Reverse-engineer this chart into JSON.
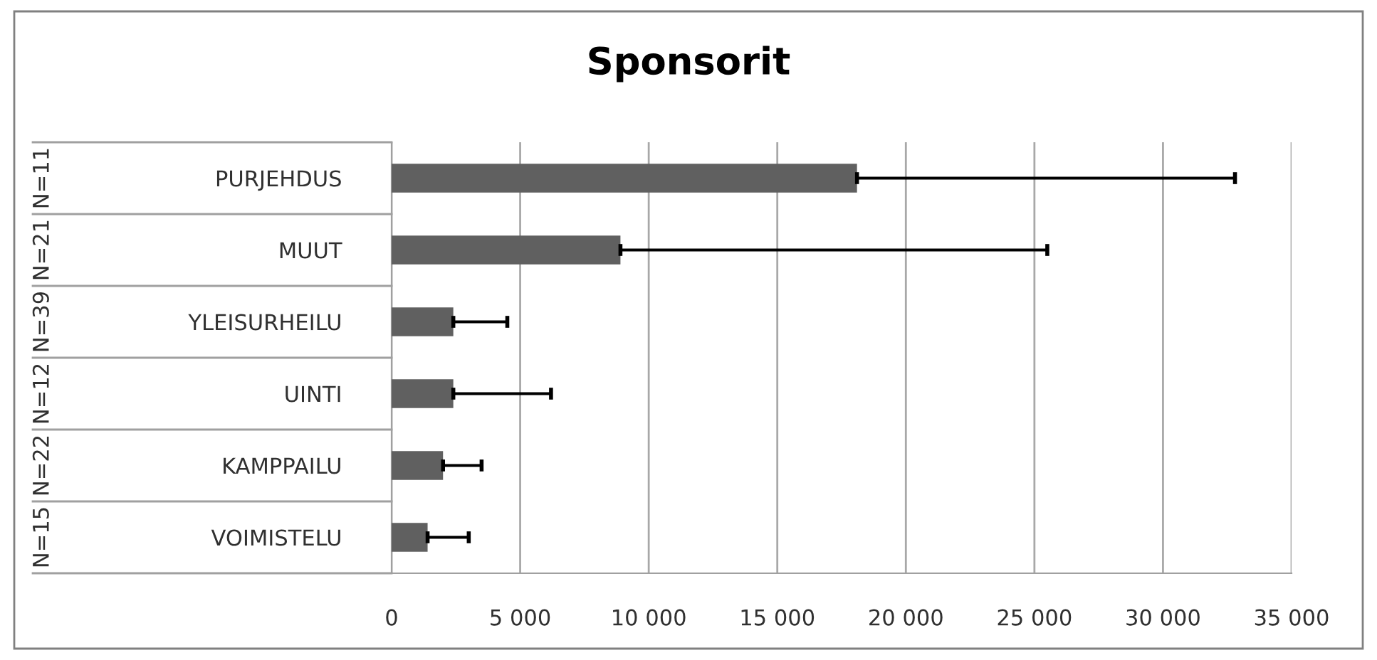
{
  "chart_data": {
    "type": "bar",
    "orientation": "horizontal",
    "title": "Sponsorit",
    "categories": [
      "PURJEHDUS",
      "MUUT",
      "YLEISURHEILU",
      "UINTI",
      "KAMPPAILU",
      "VOIMISTELU"
    ],
    "values": [
      18100,
      8900,
      2400,
      2400,
      2000,
      1400
    ],
    "errors": [
      [
        18100,
        32800
      ],
      [
        8900,
        25500
      ],
      [
        2400,
        4500
      ],
      [
        2400,
        6200
      ],
      [
        2000,
        3500
      ],
      [
        1400,
        3000
      ]
    ],
    "color": "#606060",
    "xlim": [
      0,
      35000
    ],
    "xticks": [
      {
        "value": 0,
        "label": "0"
      },
      {
        "value": 5000,
        "label": "5 000"
      },
      {
        "value": 10000,
        "label": "10 000"
      },
      {
        "value": 15000,
        "label": "15 000"
      },
      {
        "value": 20000,
        "label": "20 000"
      },
      {
        "value": 25000,
        "label": "25 000"
      },
      {
        "value": 30000,
        "label": "30 000"
      },
      {
        "value": 35000,
        "label": "35 000"
      }
    ],
    "grid": "x",
    "legend": false,
    "annotations": [
      "N=11",
      "N=21",
      "N=39",
      "N=12",
      "N=22",
      "N=15"
    ]
  }
}
